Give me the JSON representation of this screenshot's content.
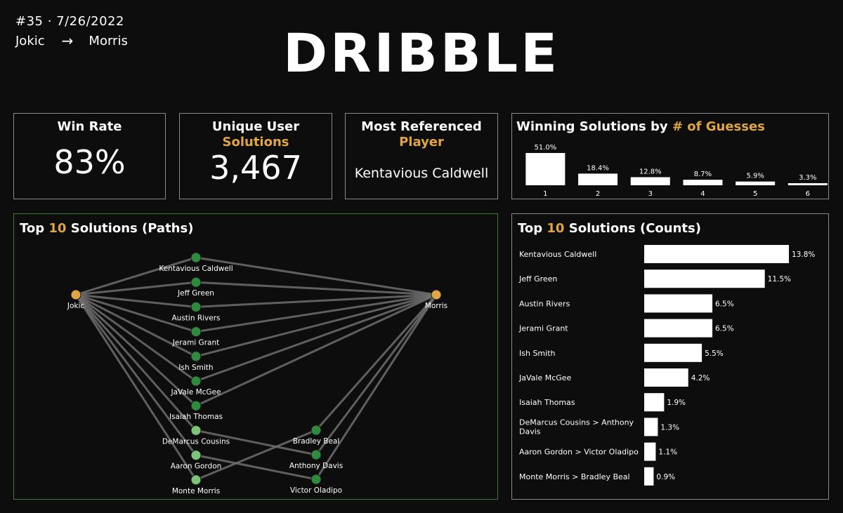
{
  "header": {
    "game_label": "#35 · 7/26/2022",
    "from_player": "Jokic",
    "arrow": "→",
    "to_player": "Morris",
    "title": "DRIBBLE"
  },
  "colors": {
    "gold": "#e0a645",
    "node_green": "#2e8b3e",
    "node_light_green": "#7cc477",
    "edge": "#6e6e6e",
    "bar": "#ffffff"
  },
  "stats": {
    "win_rate": {
      "label": "Win Rate",
      "value": "83%"
    },
    "unique": {
      "label_line1": "Unique User",
      "label_line2": "Solutions",
      "value": "3,467"
    },
    "most_ref": {
      "label_line1": "Most Referenced",
      "label_line2": "Player",
      "value": "Kentavious Caldwell"
    }
  },
  "guess_panel": {
    "title_prefix": "Winning Solutions by ",
    "title_highlight": "# of Guesses"
  },
  "paths_panel": {
    "title_prefix": "Top ",
    "title_highlight": "10",
    "title_suffix": " Solutions (Paths)"
  },
  "counts_panel": {
    "title_prefix": "Top ",
    "title_highlight": "10",
    "title_suffix": " Solutions (Counts)"
  },
  "chart_data": [
    {
      "type": "bar",
      "title": "Winning Solutions by # of Guesses",
      "categories": [
        "1",
        "2",
        "3",
        "4",
        "5",
        "6"
      ],
      "values": [
        51.0,
        18.4,
        12.8,
        8.7,
        5.9,
        3.3
      ],
      "value_labels": [
        "51.0%",
        "18.4%",
        "12.8%",
        "8.7%",
        "5.9%",
        "3.3%"
      ],
      "ylim": [
        0,
        51.0
      ]
    },
    {
      "type": "bar",
      "orientation": "horizontal",
      "title": "Top 10 Solutions (Counts)",
      "categories": [
        "Kentavious Caldwell",
        "Jeff Green",
        "Austin Rivers",
        "Jerami Grant",
        "Ish Smith",
        "JaVale McGee",
        "Isaiah Thomas",
        "DeMarcus Cousins > Anthony Davis",
        "Aaron Gordon > Victor Oladipo",
        "Monte Morris > Bradley Beal"
      ],
      "label_lines": [
        [
          "Kentavious Caldwell"
        ],
        [
          "Jeff Green"
        ],
        [
          "Austin Rivers"
        ],
        [
          "Jerami Grant"
        ],
        [
          "Ish Smith"
        ],
        [
          "JaVale McGee"
        ],
        [
          "Isaiah Thomas"
        ],
        [
          "DeMarcus Cousins > Anthony",
          "Davis"
        ],
        [
          "Aaron Gordon > Victor Oladipo"
        ],
        [
          "Monte Morris > Bradley Beal"
        ]
      ],
      "values": [
        13.8,
        11.5,
        6.5,
        6.5,
        5.5,
        4.2,
        1.9,
        1.3,
        1.1,
        0.9
      ],
      "value_labels": [
        "13.8%",
        "11.5%",
        "6.5%",
        "6.5%",
        "5.5%",
        "4.2%",
        "1.9%",
        "1.3%",
        "1.1%",
        "0.9%"
      ],
      "xlim": [
        0,
        13.8
      ]
    },
    {
      "type": "network",
      "title": "Top 10 Solutions (Paths)",
      "start": "Jokic",
      "end": "Morris",
      "level1": [
        "Kentavious Caldwell",
        "Jeff Green",
        "Austin Rivers",
        "Jerami Grant",
        "Ish Smith",
        "JaVale McGee",
        "Isaiah Thomas",
        "DeMarcus Cousins",
        "Aaron Gordon",
        "Monte Morris"
      ],
      "level2": [
        "Bradley Beal",
        "Anthony Davis",
        "Victor Oladipo"
      ],
      "paths": [
        [
          "Jokic",
          "Kentavious Caldwell",
          "Morris"
        ],
        [
          "Jokic",
          "Jeff Green",
          "Morris"
        ],
        [
          "Jokic",
          "Austin Rivers",
          "Morris"
        ],
        [
          "Jokic",
          "Jerami Grant",
          "Morris"
        ],
        [
          "Jokic",
          "Ish Smith",
          "Morris"
        ],
        [
          "Jokic",
          "JaVale McGee",
          "Morris"
        ],
        [
          "Jokic",
          "Isaiah Thomas",
          "Morris"
        ],
        [
          "Jokic",
          "DeMarcus Cousins",
          "Anthony Davis",
          "Morris"
        ],
        [
          "Jokic",
          "Aaron Gordon",
          "Victor Oladipo",
          "Morris"
        ],
        [
          "Jokic",
          "Monte Morris",
          "Bradley Beal",
          "Morris"
        ]
      ]
    }
  ]
}
